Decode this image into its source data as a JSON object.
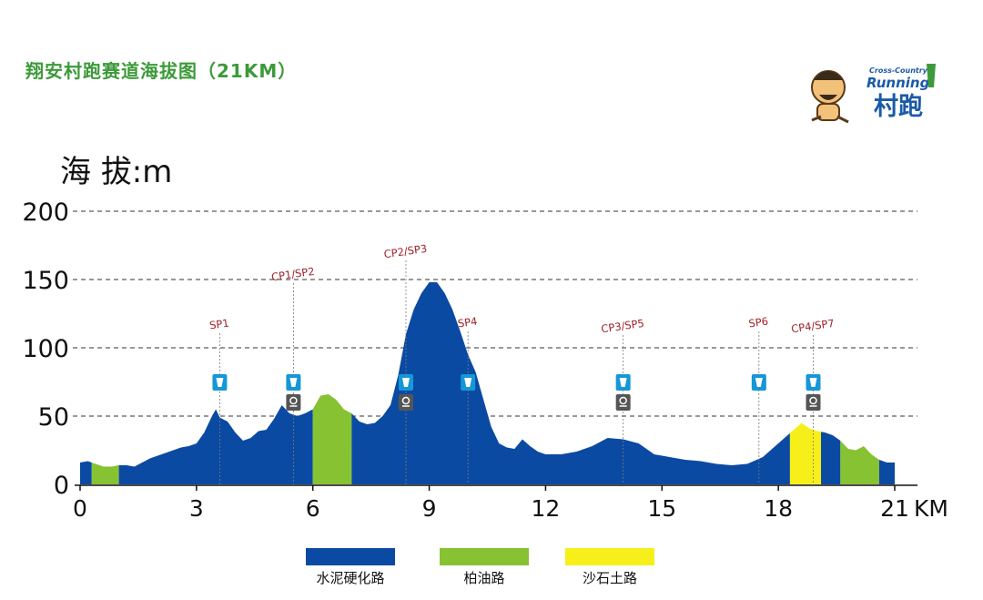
{
  "title": "翔安村跑赛道海拔图（21KM）",
  "logo": {
    "line1": "Cross-Country",
    "line2": "Running",
    "line3": "村跑"
  },
  "colors": {
    "cement": "#0b4aa2",
    "asphalt": "#86c232",
    "sand": "#f7ef1a",
    "marker_red": "#a0232b",
    "icon_blue": "#1597d8",
    "icon_gray": "#555555",
    "title_green": "#3d9a3a"
  },
  "chart_data": {
    "type": "area",
    "ylabel": "海 拔:m",
    "xunit": "KM",
    "xlim": [
      0,
      21
    ],
    "ylim": [
      0,
      200
    ],
    "xticks": [
      0,
      3,
      6,
      9,
      12,
      15,
      18,
      21
    ],
    "yticks": [
      0,
      50,
      100,
      150,
      200
    ],
    "grid": "dashed horizontal",
    "profile": [
      [
        0,
        16
      ],
      [
        0.2,
        17
      ],
      [
        0.4,
        15
      ],
      [
        0.6,
        13
      ],
      [
        0.8,
        13
      ],
      [
        1.0,
        14
      ],
      [
        1.2,
        14
      ],
      [
        1.4,
        13
      ],
      [
        1.6,
        16
      ],
      [
        1.8,
        19
      ],
      [
        2.0,
        21
      ],
      [
        2.2,
        23
      ],
      [
        2.4,
        25
      ],
      [
        2.6,
        27
      ],
      [
        2.8,
        28
      ],
      [
        3.0,
        30
      ],
      [
        3.2,
        38
      ],
      [
        3.4,
        50
      ],
      [
        3.5,
        55
      ],
      [
        3.6,
        49
      ],
      [
        3.8,
        46
      ],
      [
        4.0,
        38
      ],
      [
        4.2,
        32
      ],
      [
        4.4,
        34
      ],
      [
        4.6,
        39
      ],
      [
        4.8,
        40
      ],
      [
        5.0,
        48
      ],
      [
        5.2,
        58
      ],
      [
        5.4,
        52
      ],
      [
        5.6,
        50
      ],
      [
        5.8,
        52
      ],
      [
        6.0,
        55
      ],
      [
        6.2,
        65
      ],
      [
        6.4,
        66
      ],
      [
        6.6,
        62
      ],
      [
        6.8,
        55
      ],
      [
        7.0,
        52
      ],
      [
        7.2,
        46
      ],
      [
        7.4,
        44
      ],
      [
        7.6,
        45
      ],
      [
        7.8,
        50
      ],
      [
        8.0,
        58
      ],
      [
        8.2,
        80
      ],
      [
        8.4,
        110
      ],
      [
        8.6,
        128
      ],
      [
        8.8,
        140
      ],
      [
        9.0,
        148
      ],
      [
        9.2,
        148
      ],
      [
        9.4,
        140
      ],
      [
        9.6,
        128
      ],
      [
        9.8,
        112
      ],
      [
        10.0,
        95
      ],
      [
        10.2,
        82
      ],
      [
        10.4,
        62
      ],
      [
        10.6,
        42
      ],
      [
        10.8,
        30
      ],
      [
        11.0,
        27
      ],
      [
        11.2,
        26
      ],
      [
        11.4,
        33
      ],
      [
        11.6,
        28
      ],
      [
        11.8,
        24
      ],
      [
        12.0,
        22
      ],
      [
        12.4,
        22
      ],
      [
        12.8,
        24
      ],
      [
        13.2,
        28
      ],
      [
        13.6,
        34
      ],
      [
        14.0,
        33
      ],
      [
        14.4,
        30
      ],
      [
        14.8,
        22
      ],
      [
        15.2,
        20
      ],
      [
        15.6,
        18
      ],
      [
        16.0,
        17
      ],
      [
        16.4,
        15
      ],
      [
        16.8,
        14
      ],
      [
        17.2,
        15
      ],
      [
        17.6,
        20
      ],
      [
        18.0,
        30
      ],
      [
        18.4,
        40
      ],
      [
        18.6,
        45
      ],
      [
        18.8,
        41
      ],
      [
        19.0,
        39
      ],
      [
        19.2,
        38
      ],
      [
        19.4,
        36
      ],
      [
        19.6,
        32
      ],
      [
        19.8,
        26
      ],
      [
        20.0,
        25
      ],
      [
        20.2,
        28
      ],
      [
        20.4,
        22
      ],
      [
        20.6,
        18
      ],
      [
        20.8,
        16
      ],
      [
        21.0,
        16
      ]
    ],
    "surface_series": [
      {
        "name": "水泥硬化路",
        "color": "#0b4aa2"
      },
      {
        "name": "柏油路",
        "color": "#86c232"
      },
      {
        "name": "沙石土路",
        "color": "#f7ef1a"
      }
    ],
    "surface_segments": [
      {
        "from": 0,
        "to": 0.3,
        "surface": "水泥硬化路"
      },
      {
        "from": 0.3,
        "to": 1.0,
        "surface": "柏油路"
      },
      {
        "from": 1.0,
        "to": 6.0,
        "surface": "水泥硬化路"
      },
      {
        "from": 6.0,
        "to": 7.0,
        "surface": "柏油路"
      },
      {
        "from": 7.0,
        "to": 18.3,
        "surface": "水泥硬化路"
      },
      {
        "from": 18.3,
        "to": 19.1,
        "surface": "沙石土路"
      },
      {
        "from": 19.1,
        "to": 19.6,
        "surface": "水泥硬化路"
      },
      {
        "from": 19.6,
        "to": 20.6,
        "surface": "柏油路"
      },
      {
        "from": 20.6,
        "to": 21.0,
        "surface": "水泥硬化路"
      }
    ],
    "markers": [
      {
        "label": "SP1",
        "km": 3.6,
        "icons": [
          "sponge"
        ]
      },
      {
        "label": "CP1/SP2",
        "km": 5.5,
        "icons": [
          "sponge",
          "checkpoint"
        ]
      },
      {
        "label": "CP2/SP3",
        "km": 8.4,
        "icons": [
          "sponge",
          "checkpoint"
        ]
      },
      {
        "label": "SP4",
        "km": 10.0,
        "icons": [
          "sponge"
        ]
      },
      {
        "label": "CP3/SP5",
        "km": 14.0,
        "icons": [
          "sponge",
          "checkpoint"
        ]
      },
      {
        "label": "SP6",
        "km": 17.5,
        "icons": [
          "sponge"
        ]
      },
      {
        "label": "CP4/SP7",
        "km": 18.9,
        "icons": [
          "sponge",
          "checkpoint"
        ]
      }
    ]
  }
}
